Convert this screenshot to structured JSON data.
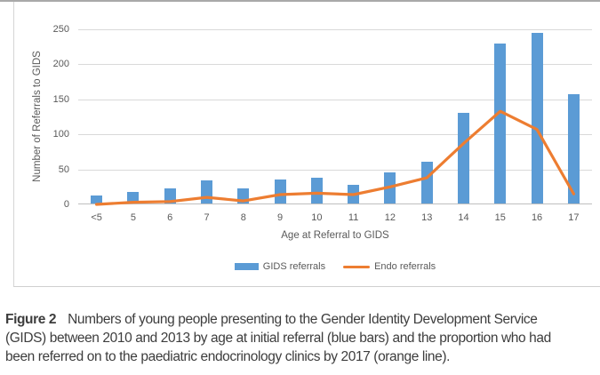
{
  "caption": {
    "label": "Figure 2",
    "lines": [
      "Numbers of young people presenting to the Gender Identity Development Service",
      "(GIDS) between 2010 and 2013 by age at initial referral (blue bars) and the proportion who had",
      "been referred on to the paediatric endocrinology clinics by 2017 (orange line)."
    ]
  },
  "chart_data": {
    "type": "bar",
    "subtype": "bar-with-line-overlay",
    "categories": [
      "<5",
      "5",
      "6",
      "7",
      "8",
      "9",
      "10",
      "11",
      "12",
      "13",
      "14",
      "15",
      "16",
      "17"
    ],
    "series": [
      {
        "name": "GIDS referrals",
        "type": "bar",
        "color": "#5b9bd5",
        "values": [
          11,
          17,
          22,
          33,
          22,
          34,
          37,
          27,
          44,
          60,
          129,
          228,
          244,
          156
        ]
      },
      {
        "name": "Endo referrals",
        "type": "line",
        "color": "#ed7d31",
        "values": [
          0,
          3,
          4,
          10,
          5,
          14,
          16,
          14,
          25,
          38,
          87,
          133,
          107,
          15
        ]
      }
    ],
    "title": "",
    "xlabel": "Age at Referral to GIDS",
    "ylabel": "Number of Referrals to GIDS",
    "ylim": [
      0,
      250
    ],
    "yticks": [
      0,
      50,
      100,
      150,
      200,
      250
    ],
    "grid": true,
    "legend_position": "bottom",
    "colors": {
      "gridline": "#d9d9d9",
      "axis_line": "#bfbfbf",
      "tick_text": "#595959",
      "caption_text": "#3d3d3d"
    }
  }
}
